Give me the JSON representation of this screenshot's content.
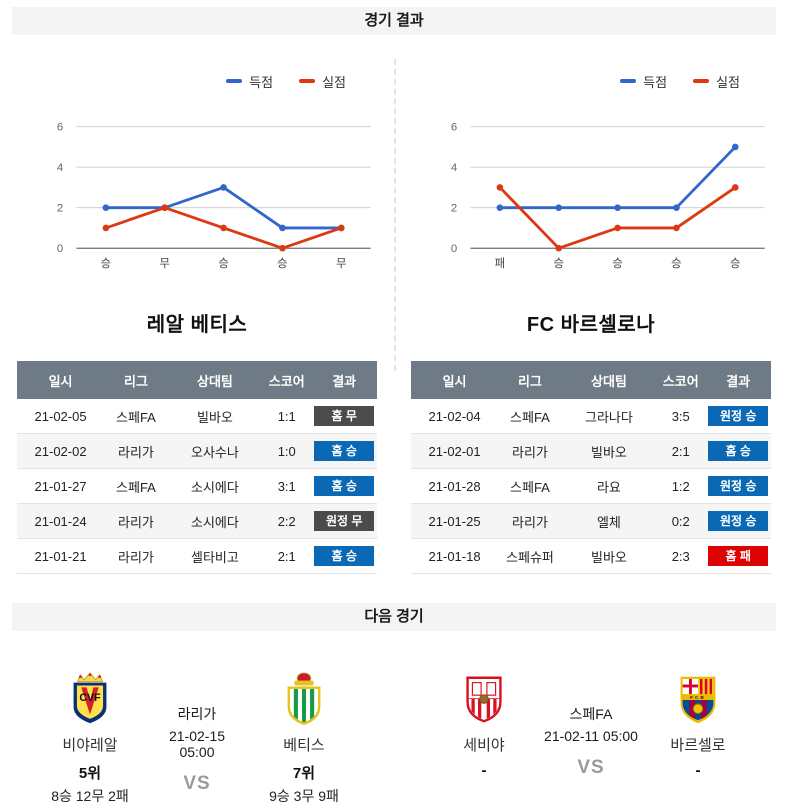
{
  "sections": {
    "results_header": "경기 결과",
    "next_header": "다음 경기"
  },
  "colors": {
    "scored_line": "#3366cc",
    "conceded_line": "#dc3912",
    "badge_win": "#0a68b4",
    "badge_draw": "#4b4b4b",
    "badge_loss": "#dd0303",
    "table_header_bg": "#6e7a86",
    "section_bar_bg": "#f4f4f4"
  },
  "chart_data": [
    {
      "type": "line",
      "team": "레알 베티스",
      "categories": [
        "승",
        "무",
        "승",
        "승",
        "무"
      ],
      "series": [
        {
          "name": "득점",
          "color": "#3366cc",
          "values": [
            2,
            2,
            3,
            1,
            1
          ]
        },
        {
          "name": "실점",
          "color": "#dc3912",
          "values": [
            1,
            2,
            1,
            0,
            1
          ]
        }
      ],
      "ylim": [
        0,
        6
      ],
      "yticks": [
        0,
        2,
        4,
        6
      ],
      "grid": true,
      "legend_position": "top-right"
    },
    {
      "type": "line",
      "team": "FC 바르셀로나",
      "categories": [
        "패",
        "승",
        "승",
        "승",
        "승"
      ],
      "series": [
        {
          "name": "득점",
          "color": "#3366cc",
          "values": [
            2,
            2,
            2,
            2,
            5
          ]
        },
        {
          "name": "실점",
          "color": "#dc3912",
          "values": [
            3,
            0,
            1,
            1,
            3
          ]
        }
      ],
      "ylim": [
        0,
        6
      ],
      "yticks": [
        0,
        2,
        4,
        6
      ],
      "grid": true,
      "legend_position": "top-right"
    }
  ],
  "tables": [
    {
      "title": "레알 베티스",
      "headers": [
        "일시",
        "리그",
        "상대팀",
        "스코어",
        "결과"
      ],
      "rows": [
        {
          "date": "21-02-05",
          "league": "스페FA",
          "opponent": "빌바오",
          "score": "1:1",
          "result": "홈 무",
          "result_type": "draw"
        },
        {
          "date": "21-02-02",
          "league": "라리가",
          "opponent": "오사수나",
          "score": "1:0",
          "result": "홈 승",
          "result_type": "win"
        },
        {
          "date": "21-01-27",
          "league": "스페FA",
          "opponent": "소시에다",
          "score": "3:1",
          "result": "홈 승",
          "result_type": "win"
        },
        {
          "date": "21-01-24",
          "league": "라리가",
          "opponent": "소시에다",
          "score": "2:2",
          "result": "원정 무",
          "result_type": "draw"
        },
        {
          "date": "21-01-21",
          "league": "라리가",
          "opponent": "셀타비고",
          "score": "2:1",
          "result": "홈 승",
          "result_type": "win"
        }
      ]
    },
    {
      "title": "FC 바르셀로나",
      "headers": [
        "일시",
        "리그",
        "상대팀",
        "스코어",
        "결과"
      ],
      "rows": [
        {
          "date": "21-02-04",
          "league": "스페FA",
          "opponent": "그라나다",
          "score": "3:5",
          "result": "원정 승",
          "result_type": "win"
        },
        {
          "date": "21-02-01",
          "league": "라리가",
          "opponent": "빌바오",
          "score": "2:1",
          "result": "홈 승",
          "result_type": "win"
        },
        {
          "date": "21-01-28",
          "league": "스페FA",
          "opponent": "라요",
          "score": "1:2",
          "result": "원정 승",
          "result_type": "win"
        },
        {
          "date": "21-01-25",
          "league": "라리가",
          "opponent": "엘체",
          "score": "0:2",
          "result": "원정 승",
          "result_type": "win"
        },
        {
          "date": "21-01-18",
          "league": "스페슈퍼",
          "opponent": "빌바오",
          "score": "2:3",
          "result": "홈 패",
          "result_type": "loss"
        }
      ]
    }
  ],
  "next_matches": [
    {
      "league": "라리가",
      "datetime": "21-02-15 05:00",
      "vs_label": "VS",
      "home": {
        "name": "비야레알",
        "rank": "5위",
        "record": "8승 12무 2패",
        "logo": "villarreal-crest"
      },
      "away": {
        "name": "베티스",
        "rank": "7위",
        "record": "9승 3무 9패",
        "logo": "betis-crest"
      }
    },
    {
      "league": "스페FA",
      "datetime": "21-02-11 05:00",
      "vs_label": "VS",
      "home": {
        "name": "세비야",
        "rank": "-",
        "record": "",
        "logo": "sevilla-crest"
      },
      "away": {
        "name": "바르셀로",
        "rank": "-",
        "record": "",
        "logo": "barcelona-crest"
      }
    }
  ]
}
